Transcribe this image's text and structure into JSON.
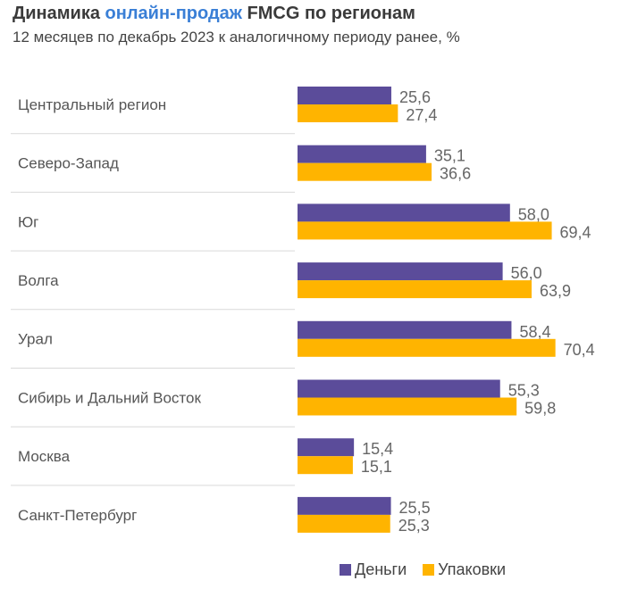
{
  "header": {
    "title_part1": "Динамика ",
    "title_accent": "онлайн-продаж",
    "title_part2": " FMCG по регионам",
    "subtitle": "12 месяцев по декабрь 2023 к аналогичному периоду ранее, %"
  },
  "colors": {
    "money": "#5b4c9a",
    "packs": "#ffb400",
    "title_accent": "#3a7fd6",
    "separator": "#d9d9d9"
  },
  "chart_data": {
    "type": "bar",
    "orientation": "horizontal",
    "title": "Динамика онлайн-продаж FMCG по регионам",
    "subtitle": "12 месяцев по декабрь 2023 к аналогичному периоду ранее, %",
    "categories": [
      "Центральный регион",
      "Северо-Запад",
      "Юг",
      "Волга",
      "Урал",
      "Сибирь и Дальний Восток",
      "Москва",
      "Санкт-Петербург"
    ],
    "series": [
      {
        "name": "Деньги",
        "values": [
          25.6,
          35.1,
          58.0,
          56.0,
          58.4,
          55.3,
          15.4,
          25.5
        ],
        "labels": [
          "25,6",
          "35,1",
          "58,0",
          "56,0",
          "58,4",
          "55,3",
          "15,4",
          "25,5"
        ]
      },
      {
        "name": "Упаковки",
        "values": [
          27.4,
          36.6,
          69.4,
          63.9,
          70.4,
          59.8,
          15.1,
          25.3
        ],
        "labels": [
          "27,4",
          "36,6",
          "69,4",
          "63,9",
          "70,4",
          "59,8",
          "15,1",
          "25,3"
        ]
      }
    ],
    "xlim": [
      0,
      75
    ],
    "grid": false,
    "legend_position": "bottom-right"
  }
}
